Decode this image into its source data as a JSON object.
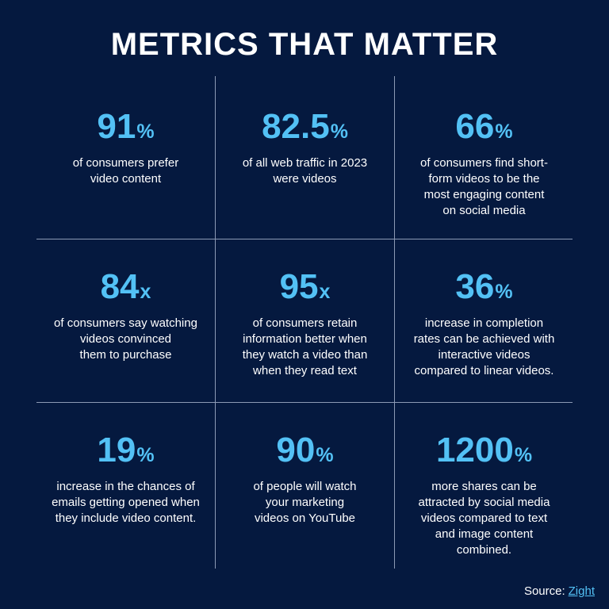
{
  "title": "METRICS THAT MATTER",
  "colors": {
    "background": "#05193f",
    "accent": "#53c1f5",
    "text": "#ffffff",
    "divider": "#8c9ab5"
  },
  "metrics": [
    {
      "value": "91",
      "unit": "%",
      "desc": [
        "of consumers prefer",
        "video content"
      ]
    },
    {
      "value": "82.5",
      "unit": "%",
      "desc": [
        "of all web traffic in 2023",
        "were videos"
      ]
    },
    {
      "value": "66",
      "unit": "%",
      "desc": [
        "of consumers find short-",
        "form videos to be the",
        "most engaging content",
        "on social media"
      ]
    },
    {
      "value": "84",
      "unit": "x",
      "desc": [
        "of consumers say watching",
        "videos convinced",
        "them to purchase"
      ]
    },
    {
      "value": "95",
      "unit": "x",
      "desc": [
        "of consumers retain",
        "information better when",
        "they watch a video than",
        "when they read text"
      ]
    },
    {
      "value": "36",
      "unit": "%",
      "desc": [
        "increase in completion",
        "rates can be achieved with",
        "interactive videos",
        "compared to linear videos."
      ]
    },
    {
      "value": "19",
      "unit": "%",
      "desc": [
        "increase in the chances of",
        "emails getting opened when",
        "they include video content."
      ]
    },
    {
      "value": "90",
      "unit": "%",
      "desc": [
        "of people will watch",
        "your marketing",
        "videos on YouTube"
      ]
    },
    {
      "value": "1200",
      "unit": "%",
      "desc": [
        "more shares can be",
        "attracted by social media",
        "videos compared to text",
        "and image content",
        "combined."
      ]
    }
  ],
  "source": {
    "label": "Source:",
    "link_text": "Zight"
  }
}
